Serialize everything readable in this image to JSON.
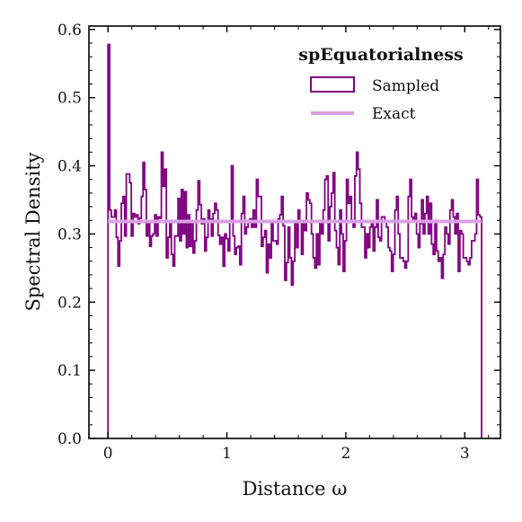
{
  "chart_data": {
    "type": "histogram",
    "title": "",
    "xlabel": "Distance ω",
    "ylabel": "Spectral Density",
    "xlim": [
      -0.16,
      3.3
    ],
    "ylim": [
      0.0,
      0.605
    ],
    "xticks": [
      0,
      1,
      2,
      3
    ],
    "xtick_labels": [
      "0",
      "1",
      "2",
      "3"
    ],
    "yticks": [
      0.0,
      0.1,
      0.2,
      0.3,
      0.4,
      0.5,
      0.6
    ],
    "ytick_labels": [
      "0.0",
      "0.1",
      "0.2",
      "0.3",
      "0.4",
      "0.5",
      "0.6"
    ],
    "grid": false,
    "legend": {
      "title": "spEquatorialness",
      "placement": "top-right",
      "entries": [
        {
          "label": "Sampled",
          "kind": "patch"
        },
        {
          "label": "Exact",
          "kind": "line"
        }
      ]
    },
    "series": [
      {
        "name": "Sampled",
        "kind": "step-histogram",
        "color": "#800080",
        "bin_start": 0.0,
        "bin_end": 3.1416,
        "values": [
          0.578,
          0.335,
          0.325,
          0.325,
          0.335,
          0.295,
          0.253,
          0.29,
          0.345,
          0.355,
          0.297,
          0.388,
          0.388,
          0.375,
          0.297,
          0.33,
          0.325,
          0.328,
          0.315,
          0.323,
          0.355,
          0.405,
          0.365,
          0.297,
          0.315,
          0.282,
          0.297,
          0.3,
          0.328,
          0.297,
          0.325,
          0.323,
          0.42,
          0.37,
          0.395,
          0.265,
          0.295,
          0.32,
          0.27,
          0.253,
          0.297,
          0.297,
          0.352,
          0.29,
          0.365,
          0.3,
          0.362,
          0.28,
          0.328,
          0.282,
          0.315,
          0.272,
          0.29,
          0.335,
          0.378,
          0.343,
          0.315,
          0.322,
          0.275,
          0.295,
          0.335,
          0.322,
          0.297,
          0.33,
          0.345,
          0.335,
          0.298,
          0.285,
          0.295,
          0.253,
          0.3,
          0.293,
          0.275,
          0.318,
          0.4,
          0.297,
          0.27,
          0.28,
          0.282,
          0.255,
          0.33,
          0.355,
          0.3,
          0.31,
          0.318,
          0.322,
          0.31,
          0.335,
          0.31,
          0.38,
          0.355,
          0.355,
          0.282,
          0.295,
          0.305,
          0.243,
          0.285,
          0.265,
          0.315,
          0.29,
          0.29,
          0.285,
          0.322,
          0.328,
          0.355,
          0.312,
          0.232,
          0.258,
          0.31,
          0.265,
          0.225,
          0.26,
          0.318,
          0.28,
          0.335,
          0.318,
          0.27,
          0.32,
          0.305,
          0.36,
          0.35,
          0.345,
          0.3,
          0.265,
          0.25,
          0.3,
          0.255,
          0.318,
          0.3,
          0.335,
          0.38,
          0.385,
          0.29,
          0.34,
          0.36,
          0.39,
          0.305,
          0.28,
          0.255,
          0.335,
          0.3,
          0.245,
          0.29,
          0.38,
          0.345,
          0.355,
          0.32,
          0.31,
          0.385,
          0.42,
          0.395,
          0.345,
          0.31,
          0.31,
          0.265,
          0.3,
          0.28,
          0.31,
          0.315,
          0.275,
          0.31,
          0.35,
          0.295,
          0.29,
          0.325,
          0.325,
          0.318,
          0.31,
          0.28,
          0.275,
          0.245,
          0.27,
          0.335,
          0.355,
          0.3,
          0.265,
          0.265,
          0.26,
          0.25,
          0.26,
          0.355,
          0.38,
          0.325,
          0.32,
          0.33,
          0.3,
          0.28,
          0.315,
          0.35,
          0.3,
          0.33,
          0.355,
          0.3,
          0.345,
          0.285,
          0.27,
          0.32,
          0.275,
          0.26,
          0.265,
          0.235,
          0.27,
          0.31,
          0.3,
          0.285,
          0.335,
          0.35,
          0.325,
          0.3,
          0.33,
          0.245,
          0.305,
          0.3,
          0.265,
          0.265,
          0.26,
          0.255,
          0.265,
          0.29,
          0.29,
          0.3,
          0.38,
          0.328,
          0.325
        ]
      },
      {
        "name": "Exact",
        "kind": "line",
        "color": "#d9a0e3",
        "x": [
          0.0,
          3.1416
        ],
        "y": [
          0.3183,
          0.3183
        ]
      }
    ]
  }
}
